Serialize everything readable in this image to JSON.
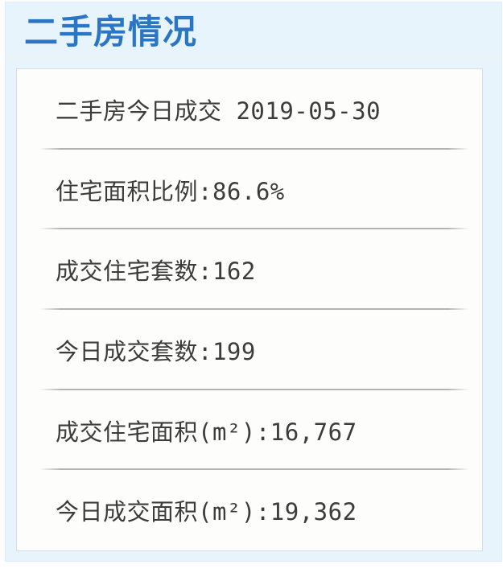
{
  "page": {
    "title": "二手房情况"
  },
  "stats": {
    "rows": [
      {
        "text": "二手房今日成交 2019-05-30"
      },
      {
        "text": "住宅面积比例:86.6%"
      },
      {
        "text": "成交住宅套数:162"
      },
      {
        "text": "今日成交套数:199"
      },
      {
        "text": "成交住宅面积(m²):16,767"
      },
      {
        "text": "今日成交面积(m²):19,362"
      }
    ]
  },
  "values": {
    "date": "2019-05-30",
    "residential_area_ratio": "86.6%",
    "residential_units_sold": "162",
    "total_units_sold_today": "199",
    "residential_area_sold_sqm": "16,767",
    "total_area_sold_today_sqm": "19,362"
  },
  "colors": {
    "accent_blue": "#2a76c4",
    "container_background": "#e8f4fb",
    "panel_background": "#fdfdfc",
    "panel_border": "#d7dde2",
    "divider": "#b3b3b3",
    "text": "#3c3c3c"
  }
}
